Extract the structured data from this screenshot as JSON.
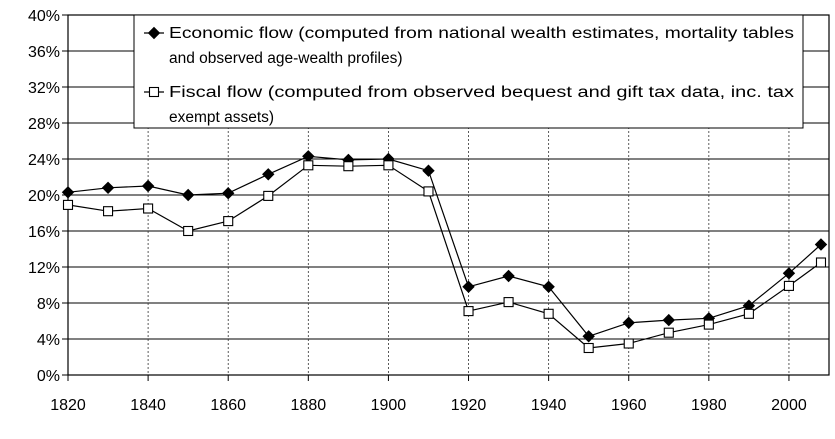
{
  "chart_data": {
    "type": "line",
    "title": "",
    "xlabel": "",
    "ylabel": "",
    "xlim": [
      1820,
      2010
    ],
    "ylim": [
      0,
      40
    ],
    "y_ticks": [
      0,
      4,
      8,
      12,
      16,
      20,
      24,
      28,
      32,
      36,
      40
    ],
    "y_tick_labels": [
      "0%",
      "4%",
      "8%",
      "12%",
      "16%",
      "20%",
      "24%",
      "28%",
      "32%",
      "36%",
      "40%"
    ],
    "x_ticks": [
      1820,
      1840,
      1860,
      1880,
      1900,
      1920,
      1940,
      1960,
      1980,
      2000
    ],
    "x_tick_labels": [
      "1820",
      "1840",
      "1860",
      "1880",
      "1900",
      "1920",
      "1940",
      "1960",
      "1980",
      "2000"
    ],
    "grid": {
      "horizontal": "solid",
      "vertical": "dotted"
    },
    "legend": {
      "placement": "top-center",
      "entries": [
        {
          "lines": [
            "Economic flow (computed from national wealth estimates, mortality tables",
            "and observed age-wealth profiles)"
          ]
        },
        {
          "lines": [
            "Fiscal flow (computed from observed bequest and gift tax data, inc. tax",
            "exempt assets)"
          ]
        }
      ]
    },
    "series": [
      {
        "name": "Economic flow (computed from national wealth estimates, mortality tables and observed age-wealth profiles)",
        "marker": "filled-diamond",
        "color": "#000000",
        "x": [
          1820,
          1830,
          1840,
          1850,
          1860,
          1870,
          1880,
          1890,
          1900,
          1910,
          1920,
          1930,
          1940,
          1950,
          1960,
          1970,
          1980,
          1990,
          2000,
          2008
        ],
        "y": [
          20.3,
          20.8,
          21.0,
          20.0,
          20.2,
          22.3,
          24.3,
          23.9,
          24.0,
          22.7,
          9.8,
          11.0,
          9.8,
          4.3,
          5.8,
          6.1,
          6.3,
          7.7,
          11.3,
          14.5
        ]
      },
      {
        "name": "Fiscal flow (computed from observed bequest and gift tax data, inc. tax exempt assets)",
        "marker": "open-square",
        "color": "#000000",
        "x": [
          1820,
          1830,
          1840,
          1850,
          1860,
          1870,
          1880,
          1890,
          1900,
          1910,
          1920,
          1930,
          1940,
          1950,
          1960,
          1970,
          1980,
          1990,
          2000,
          2008
        ],
        "y": [
          18.9,
          18.2,
          18.5,
          16.0,
          17.1,
          19.9,
          23.3,
          23.2,
          23.3,
          20.4,
          7.1,
          8.1,
          6.8,
          3.0,
          3.5,
          4.7,
          5.6,
          6.8,
          9.9,
          12.5
        ]
      }
    ]
  }
}
